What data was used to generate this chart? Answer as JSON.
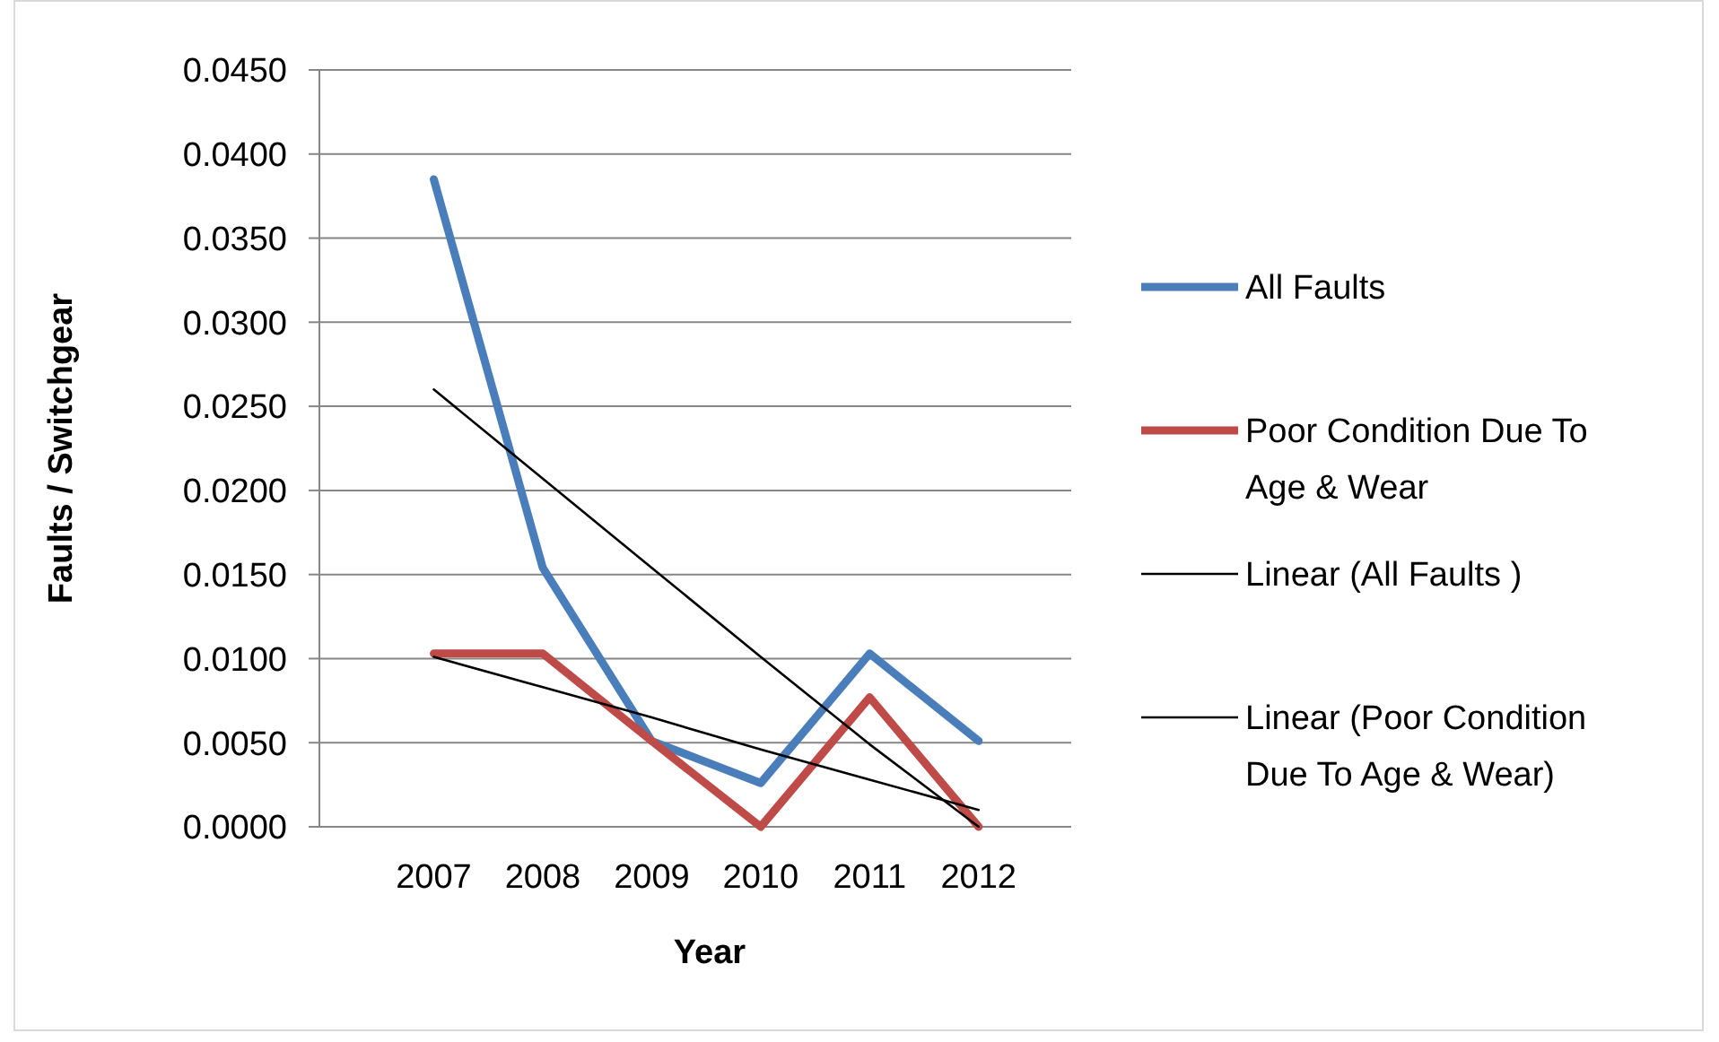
{
  "chart_data": {
    "type": "line",
    "categories": [
      "2007",
      "2008",
      "2009",
      "2010",
      "2011",
      "2012"
    ],
    "xlabel": "Year",
    "ylabel": "Faults / Switchgear",
    "ylim": [
      0,
      0.045
    ],
    "yticks": [
      {
        "value": 0,
        "label": "0.0000"
      },
      {
        "value": 0.005,
        "label": "0.0050"
      },
      {
        "value": 0.01,
        "label": "0.0100"
      },
      {
        "value": 0.015,
        "label": "0.0150"
      },
      {
        "value": 0.02,
        "label": "0.0200"
      },
      {
        "value": 0.025,
        "label": "0.0250"
      },
      {
        "value": 0.03,
        "label": "0.0300"
      },
      {
        "value": 0.035,
        "label": "0.0350"
      },
      {
        "value": 0.04,
        "label": "0.0400"
      },
      {
        "value": 0.045,
        "label": "0.0450"
      }
    ],
    "grid": "y",
    "legend": "right",
    "marker": "none",
    "series": [
      {
        "name": "All Faults",
        "color": "#4a7ebb",
        "values": [
          0.0385,
          0.0154,
          0.0051,
          0.0026,
          0.0103,
          0.0051
        ]
      },
      {
        "name": "Poor Condition Due To Age & Wear",
        "color": "#be4b48",
        "values": [
          0.0103,
          0.0103,
          0.0051,
          0,
          0.0077,
          0
        ]
      },
      {
        "name": "Linear (All Faults )",
        "color": "#000000",
        "values": [
          0.026,
          0.0207,
          0.0154,
          0.0101,
          0.0049,
          0
        ]
      },
      {
        "name": "Linear (Poor Condition Due To Age & Wear)",
        "color": "#000000",
        "values": [
          0.0101,
          0.0083,
          0.0065,
          0.0046,
          0.0028,
          0.001
        ]
      }
    ]
  }
}
